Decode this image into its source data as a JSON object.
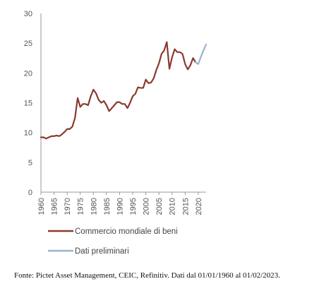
{
  "chart_data": {
    "type": "line",
    "title": "",
    "xlabel": "",
    "ylabel": "",
    "xlim": [
      1960,
      2023
    ],
    "ylim": [
      0,
      30
    ],
    "grid": false,
    "legend_position": "bottom",
    "x_ticks": [
      "1960",
      "1965",
      "1970",
      "1975",
      "1980",
      "1985",
      "1990",
      "1995",
      "2000",
      "2005",
      "2010",
      "2015",
      "2020"
    ],
    "y_ticks": [
      "0",
      "5",
      "10",
      "15",
      "20",
      "25",
      "30"
    ],
    "series": [
      {
        "name": "Commercio mondiale di beni",
        "color": "#8B3A2E",
        "x": [
          1960,
          1961,
          1962,
          1963,
          1964,
          1965,
          1966,
          1967,
          1968,
          1969,
          1970,
          1971,
          1972,
          1973,
          1974,
          1975,
          1976,
          1977,
          1978,
          1979,
          1980,
          1981,
          1982,
          1983,
          1984,
          1985,
          1986,
          1987,
          1988,
          1989,
          1990,
          1991,
          1992,
          1993,
          1994,
          1995,
          1996,
          1997,
          1998,
          1999,
          2000,
          2001,
          2002,
          2003,
          2004,
          2005,
          2006,
          2007,
          2008,
          2009,
          2010,
          2011,
          2012,
          2013,
          2014,
          2015,
          2016,
          2017,
          2018,
          2019
        ],
        "y": [
          9.2,
          9.2,
          9.0,
          9.2,
          9.4,
          9.4,
          9.5,
          9.4,
          9.7,
          10.1,
          10.6,
          10.6,
          11.0,
          12.5,
          15.8,
          14.3,
          14.8,
          14.8,
          14.6,
          16.1,
          17.2,
          16.6,
          15.5,
          15.0,
          15.3,
          14.6,
          13.6,
          14.1,
          14.6,
          15.1,
          15.1,
          14.8,
          14.8,
          14.1,
          15.0,
          16.1,
          16.5,
          17.6,
          17.5,
          17.5,
          18.9,
          18.3,
          18.4,
          19.1,
          20.5,
          21.6,
          23.2,
          23.8,
          25.2,
          20.7,
          22.6,
          24.0,
          23.5,
          23.5,
          23.2,
          21.5,
          20.6,
          21.3,
          22.5,
          21.8
        ]
      },
      {
        "name": "Dati preliminari",
        "color": "#9BB3CD",
        "x": [
          2019,
          2020,
          2021,
          2022,
          2023
        ],
        "y": [
          21.8,
          21.5,
          22.7,
          23.8,
          24.8
        ]
      }
    ]
  },
  "footer": {
    "source_note": "Fonte: Pictet Asset Management, CEIC, Refinitiv. Dati dal 01/01/1960 al 01/02/2023."
  }
}
